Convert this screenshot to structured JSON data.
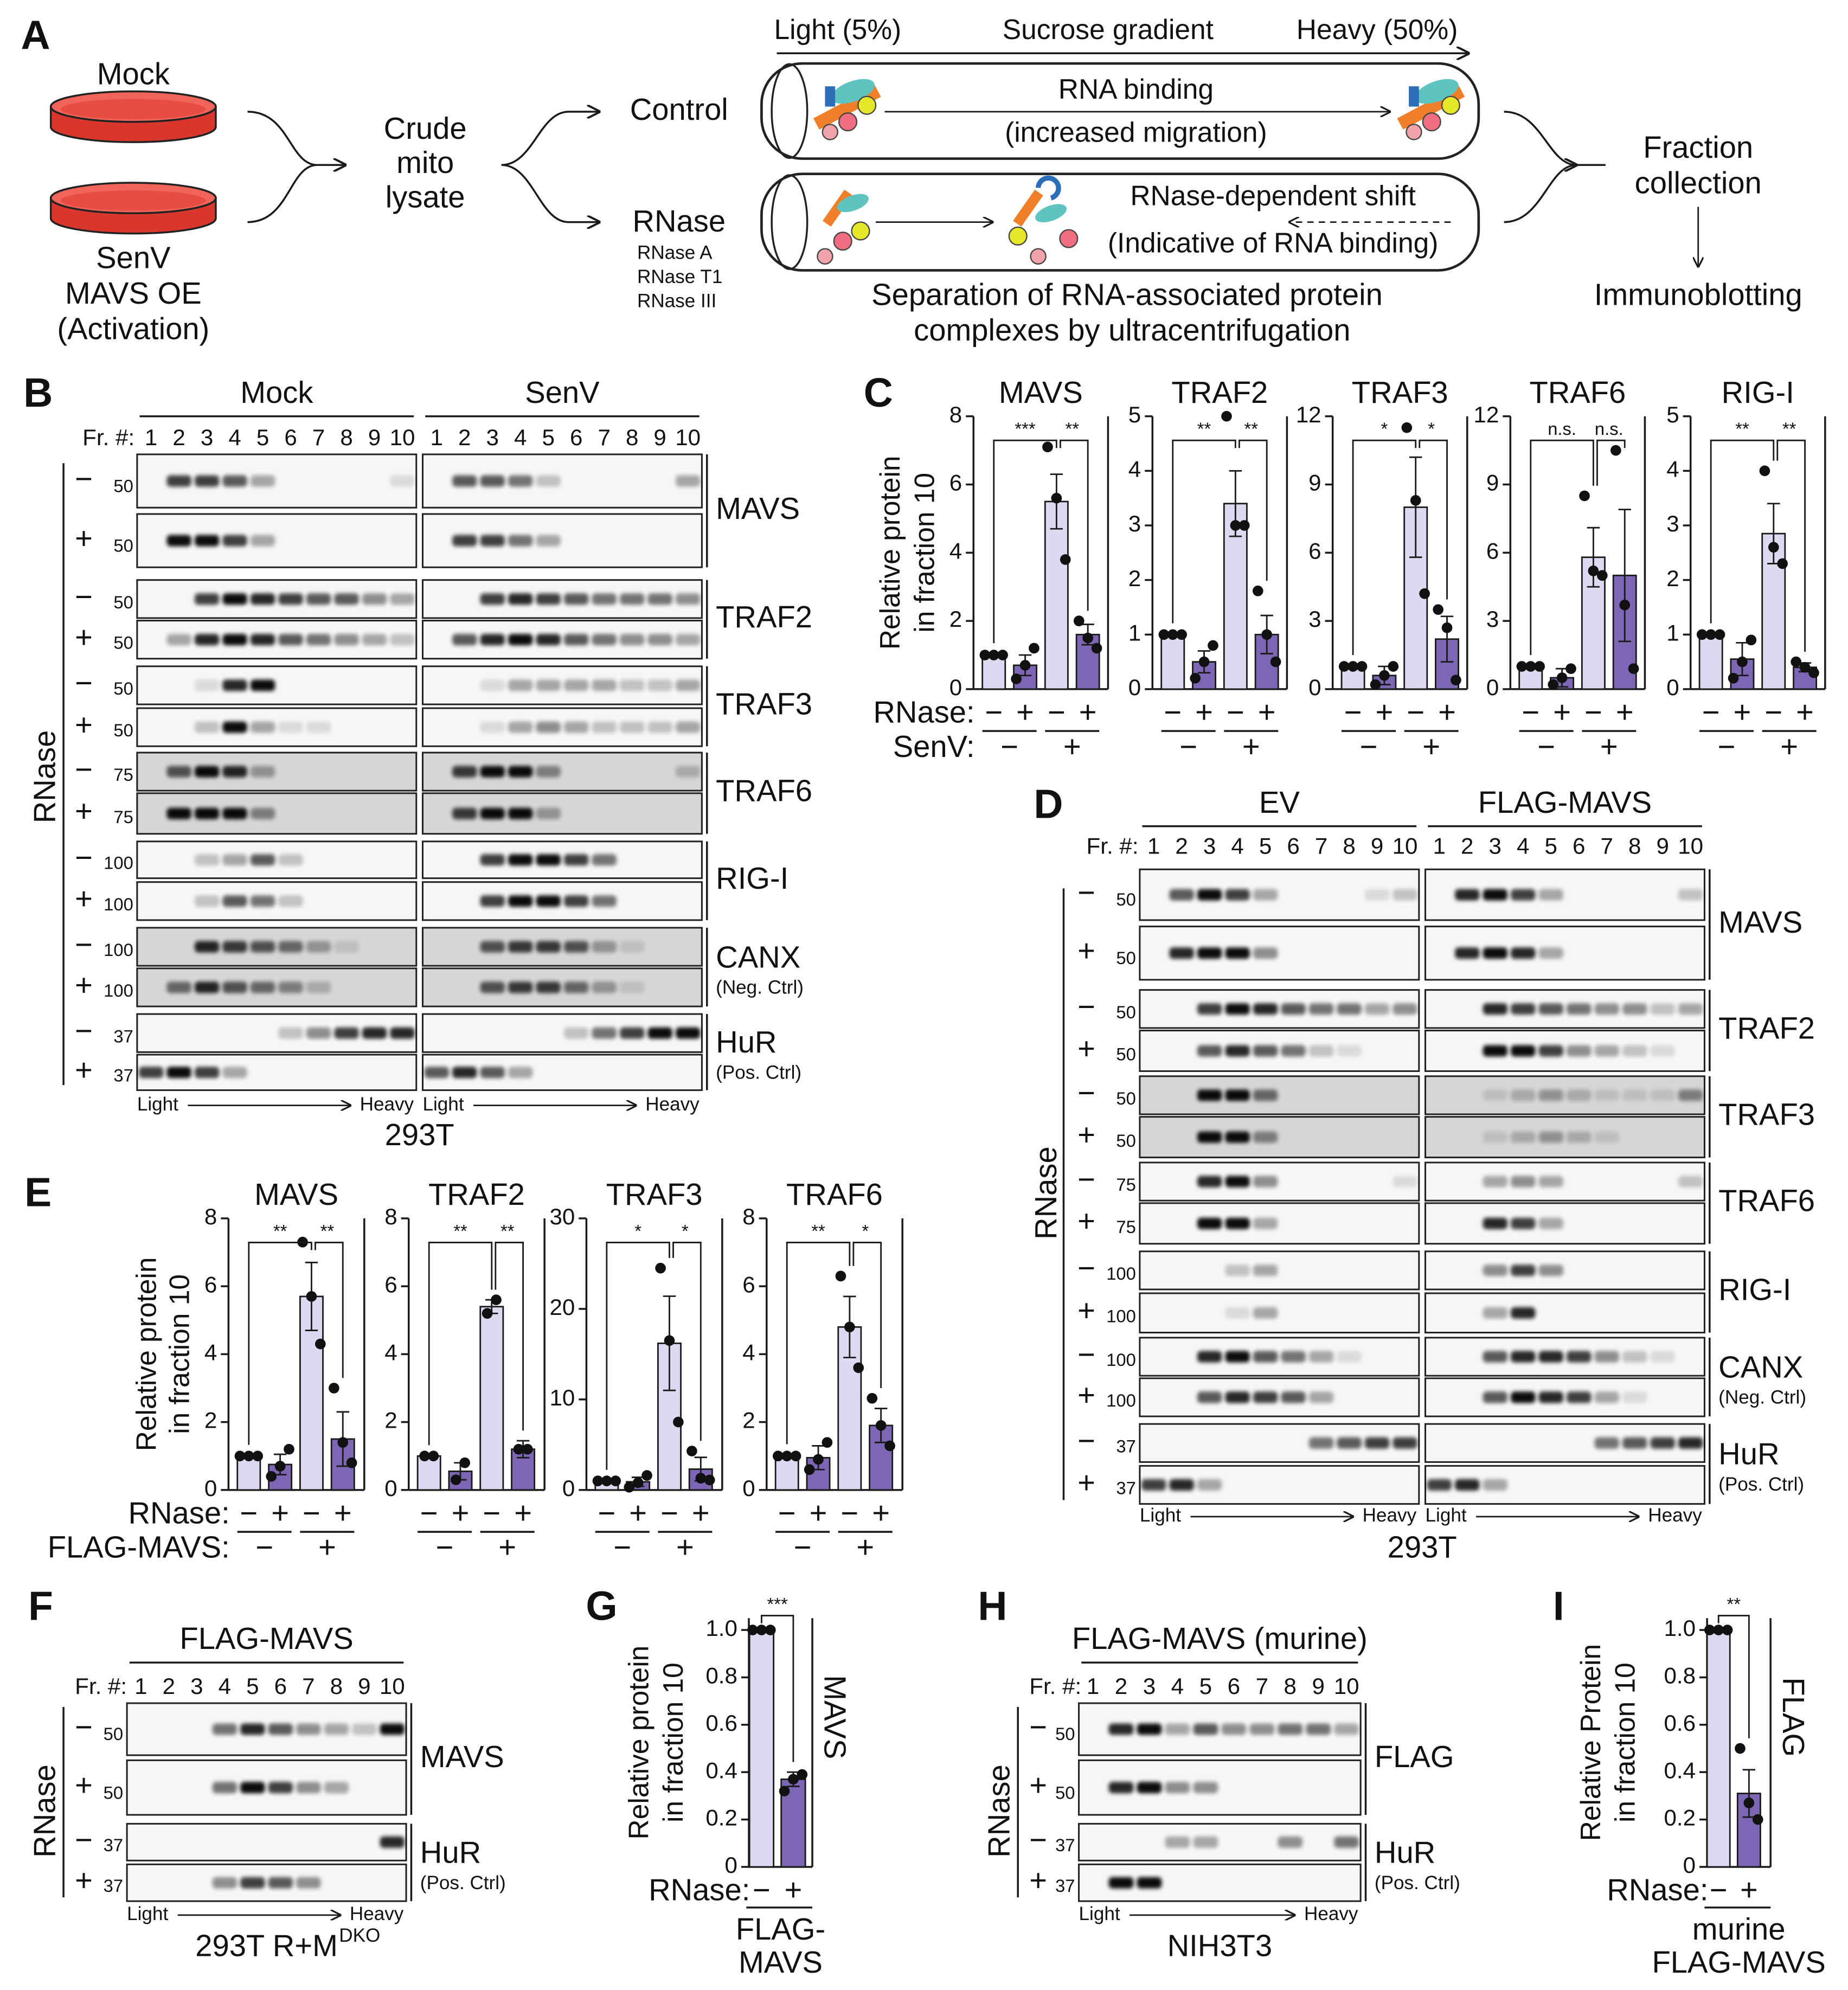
{
  "letters": [
    "A",
    "B",
    "C",
    "D",
    "E",
    "F",
    "G",
    "H",
    "I"
  ],
  "panel_a": {
    "mock": "Mock",
    "senv": [
      "SenV",
      "MAVS OE",
      "(Activation)"
    ],
    "lysate": [
      "Crude",
      "mito",
      "lysate"
    ],
    "control": "Control",
    "rnase": "RNase",
    "rnases": [
      "RNase A",
      "RNase T1",
      "RNase III"
    ],
    "light": "Light (5%)",
    "gradient": "Sucrose gradient",
    "heavy": "Heavy (50%)",
    "binding": [
      "RNA binding",
      "(increased migration)"
    ],
    "shift": [
      "RNase-dependent shift",
      "(Indicative of RNA binding)"
    ],
    "separation": [
      "Separation of RNA-associated protein",
      "complexes by ultracentrifugation"
    ],
    "collection": [
      "Fraction",
      "collection"
    ],
    "immunoblotting": "Immunoblotting"
  },
  "blots": {
    "B": {
      "groups": [
        "Mock",
        "SenV"
      ],
      "fraction_label": "Fr. #:",
      "fractions": [
        1,
        2,
        3,
        4,
        5,
        6,
        7,
        8,
        9,
        10
      ],
      "treatment": "RNase",
      "signs": [
        "−",
        "+"
      ],
      "rows": [
        {
          "protein": "MAVS",
          "markers": [
            50,
            50
          ]
        },
        {
          "protein": "TRAF2",
          "markers": [
            50,
            50
          ]
        },
        {
          "protein": "TRAF3",
          "markers": [
            50,
            50
          ]
        },
        {
          "protein": "TRAF6",
          "markers": [
            75,
            75
          ]
        },
        {
          "protein": "RIG-I",
          "markers": [
            100,
            100
          ]
        },
        {
          "protein": "CANX",
          "note": "(Neg. Ctrl)",
          "markers": [
            100,
            100
          ]
        },
        {
          "protein": "HuR",
          "note": "(Pos. Ctrl)",
          "markers": [
            37,
            37
          ]
        }
      ],
      "light": "Light",
      "heavy": "Heavy",
      "cell_line": "293T"
    },
    "D": {
      "groups": [
        "EV",
        "FLAG-MAVS"
      ],
      "fraction_label": "Fr. #:",
      "fractions": [
        1,
        2,
        3,
        4,
        5,
        6,
        7,
        8,
        9,
        10
      ],
      "treatment": "RNase",
      "signs": [
        "−",
        "+"
      ],
      "rows": [
        {
          "protein": "MAVS",
          "markers": [
            50,
            50
          ]
        },
        {
          "protein": "TRAF2",
          "markers": [
            50,
            50
          ]
        },
        {
          "protein": "TRAF3",
          "markers": [
            50,
            50
          ]
        },
        {
          "protein": "TRAF6",
          "markers": [
            75,
            75
          ]
        },
        {
          "protein": "RIG-I",
          "markers": [
            100,
            100
          ]
        },
        {
          "protein": "CANX",
          "note": "(Neg. Ctrl)",
          "markers": [
            100,
            100
          ]
        },
        {
          "protein": "HuR",
          "note": "(Pos. Ctrl)",
          "markers": [
            37,
            37
          ]
        }
      ],
      "light": "Light",
      "heavy": "Heavy",
      "cell_line": "293T"
    },
    "F": {
      "groups": [
        "FLAG-MAVS"
      ],
      "fraction_label": "Fr. #:",
      "fractions": [
        1,
        2,
        3,
        4,
        5,
        6,
        7,
        8,
        9,
        10
      ],
      "treatment": "RNase",
      "signs": [
        "−",
        "+"
      ],
      "rows": [
        {
          "protein": "MAVS",
          "markers": [
            50,
            50
          ]
        },
        {
          "protein": "HuR",
          "note": "(Pos. Ctrl)",
          "markers": [
            37,
            37
          ]
        }
      ],
      "light": "Light",
      "heavy": "Heavy",
      "cell_line": "293T R+M",
      "superscript": "DKO"
    },
    "H": {
      "groups": [
        "FLAG-MAVS (murine)"
      ],
      "fraction_label": "Fr. #:",
      "fractions": [
        1,
        2,
        3,
        4,
        5,
        6,
        7,
        8,
        9,
        10
      ],
      "treatment": "RNase",
      "signs": [
        "−",
        "+"
      ],
      "rows": [
        {
          "protein": "FLAG",
          "markers": [
            50,
            50
          ]
        },
        {
          "protein": "HuR",
          "note": "(Pos. Ctrl)",
          "markers": [
            37,
            37
          ]
        }
      ],
      "light": "Light",
      "heavy": "Heavy",
      "cell_line": "NIH3T3"
    }
  },
  "chart_data": [
    {
      "type": "bar",
      "title": "MAVS",
      "y_label": [
        "Relative protein",
        "in fraction 10"
      ],
      "x_label": "RNase:",
      "group_label": "SenV:",
      "groups": [
        "−",
        "+"
      ],
      "categories": [
        "−",
        "+",
        "−",
        "+"
      ],
      "values": [
        1,
        0.7,
        5.5,
        1.6
      ],
      "errors": [
        0.05,
        0.3,
        0.8,
        0.3
      ],
      "points": [
        [
          1,
          1,
          1
        ],
        [
          0.3,
          0.7,
          1.2
        ],
        [
          7.1,
          5.6,
          3.8
        ],
        [
          2.0,
          1.5,
          1.2
        ]
      ],
      "significance": [
        "***",
        "**"
      ],
      "ylim": [
        0,
        8
      ],
      "yticks": [
        0,
        2,
        4,
        6,
        8
      ],
      "colors": [
        "#dcdaf0",
        "#7d67b4",
        "#dcdaf0",
        "#7d67b4"
      ]
    },
    {
      "type": "bar",
      "title": "TRAF2",
      "groups": [
        "−",
        "+"
      ],
      "categories": [
        "−",
        "+",
        "−",
        "+"
      ],
      "values": [
        1,
        0.5,
        3.4,
        1.0
      ],
      "errors": [
        0.02,
        0.2,
        0.6,
        0.35
      ],
      "points": [
        [
          1,
          1,
          1
        ],
        [
          0.2,
          0.5,
          0.8
        ],
        [
          5.0,
          3.0,
          3.0
        ],
        [
          1.8,
          1.0,
          0.5
        ]
      ],
      "significance": [
        "**",
        "**"
      ],
      "ylim": [
        0,
        5
      ],
      "yticks": [
        0,
        1,
        2,
        3,
        4,
        5
      ],
      "colors": [
        "#dcdaf0",
        "#7d67b4",
        "#dcdaf0",
        "#7d67b4"
      ]
    },
    {
      "type": "bar",
      "title": "TRAF3",
      "groups": [
        "−",
        "+"
      ],
      "categories": [
        "−",
        "+",
        "−",
        "+"
      ],
      "values": [
        1,
        0.6,
        8.0,
        2.2
      ],
      "errors": [
        0.05,
        0.4,
        2.2,
        1.0
      ],
      "points": [
        [
          1,
          1,
          1
        ],
        [
          0.2,
          0.6,
          1.0
        ],
        [
          11.5,
          8.3,
          4.2
        ],
        [
          3.5,
          2.7,
          0.4
        ]
      ],
      "significance": [
        "*",
        "*"
      ],
      "ylim": [
        0,
        12
      ],
      "yticks": [
        0,
        3,
        6,
        9,
        12
      ],
      "colors": [
        "#dcdaf0",
        "#7d67b4",
        "#dcdaf0",
        "#7d67b4"
      ]
    },
    {
      "type": "bar",
      "title": "TRAF6",
      "groups": [
        "−",
        "+"
      ],
      "categories": [
        "−",
        "+",
        "−",
        "+"
      ],
      "values": [
        1,
        0.5,
        5.8,
        5.0
      ],
      "errors": [
        0.05,
        0.4,
        1.3,
        2.9
      ],
      "points": [
        [
          1,
          1,
          1
        ],
        [
          0.2,
          0.5,
          0.9
        ],
        [
          8.5,
          5.2,
          5.0
        ],
        [
          10.5,
          3.7,
          0.9
        ]
      ],
      "significance": [
        "n.s.",
        "n.s."
      ],
      "ylim": [
        0,
        12
      ],
      "yticks": [
        0,
        3,
        6,
        9,
        12
      ],
      "colors": [
        "#dcdaf0",
        "#7d67b4",
        "#dcdaf0",
        "#7d67b4"
      ]
    },
    {
      "type": "bar",
      "title": "RIG-I",
      "groups": [
        "−",
        "+"
      ],
      "categories": [
        "−",
        "+",
        "−",
        "+"
      ],
      "values": [
        1,
        0.55,
        2.85,
        0.4
      ],
      "errors": [
        0.02,
        0.3,
        0.55,
        0.08
      ],
      "points": [
        [
          1,
          1,
          1
        ],
        [
          0.2,
          0.5,
          0.9
        ],
        [
          4.0,
          2.6,
          2.3
        ],
        [
          0.5,
          0.4,
          0.3
        ]
      ],
      "significance": [
        "**",
        "**"
      ],
      "ylim": [
        0,
        5
      ],
      "yticks": [
        0,
        1,
        2,
        3,
        4,
        5
      ],
      "colors": [
        "#dcdaf0",
        "#7d67b4",
        "#dcdaf0",
        "#7d67b4"
      ]
    },
    {
      "type": "bar",
      "title": "MAVS",
      "y_label": [
        "Relative protein",
        "in fraction 10"
      ],
      "x_label": "RNase:",
      "group_label": "FLAG-MAVS:",
      "groups": [
        "−",
        "+"
      ],
      "categories": [
        "−",
        "+",
        "−",
        "+"
      ],
      "values": [
        1,
        0.75,
        5.7,
        1.5
      ],
      "errors": [
        0.03,
        0.3,
        1.0,
        0.8
      ],
      "points": [
        [
          1,
          1,
          1
        ],
        [
          0.4,
          0.7,
          1.2
        ],
        [
          7.3,
          5.7,
          4.3
        ],
        [
          3.0,
          1.4,
          0.8
        ]
      ],
      "significance": [
        "**",
        "**"
      ],
      "ylim": [
        0,
        8
      ],
      "yticks": [
        0,
        2,
        4,
        6,
        8
      ],
      "colors": [
        "#dcdaf0",
        "#7d67b4",
        "#dcdaf0",
        "#7d67b4"
      ]
    },
    {
      "type": "bar",
      "title": "TRAF2",
      "groups": [
        "−",
        "+"
      ],
      "categories": [
        "−",
        "+",
        "−",
        "+"
      ],
      "values": [
        1,
        0.55,
        5.4,
        1.2
      ],
      "errors": [
        0.02,
        0.25,
        0.2,
        0.25
      ],
      "points": [
        [
          1,
          1
        ],
        [
          0.3,
          0.8
        ],
        [
          5.2,
          5.6
        ],
        [
          1.2,
          1.2
        ]
      ],
      "significance": [
        "**",
        "**"
      ],
      "ylim": [
        0,
        8
      ],
      "yticks": [
        0,
        2,
        4,
        6,
        8
      ],
      "colors": [
        "#dcdaf0",
        "#7d67b4",
        "#dcdaf0",
        "#7d67b4"
      ]
    },
    {
      "type": "bar",
      "title": "TRAF3",
      "groups": [
        "−",
        "+"
      ],
      "categories": [
        "−",
        "+",
        "−",
        "+"
      ],
      "values": [
        1,
        0.9,
        16.2,
        2.3
      ],
      "errors": [
        0.1,
        0.5,
        5.2,
        1.3
      ],
      "points": [
        [
          1,
          1,
          1
        ],
        [
          0.3,
          0.8,
          1.6
        ],
        [
          24.5,
          16.5,
          7.5
        ],
        [
          4.3,
          1.3,
          1.1
        ]
      ],
      "significance": [
        "*",
        "*"
      ],
      "ylim": [
        0,
        30
      ],
      "yticks": [
        0,
        10,
        20,
        30
      ],
      "colors": [
        "#dcdaf0",
        "#7d67b4",
        "#dcdaf0",
        "#7d67b4"
      ]
    },
    {
      "type": "bar",
      "title": "TRAF6",
      "groups": [
        "−",
        "+"
      ],
      "categories": [
        "−",
        "+",
        "−",
        "+"
      ],
      "values": [
        1,
        0.95,
        4.8,
        1.9
      ],
      "errors": [
        0.05,
        0.35,
        0.9,
        0.5
      ],
      "points": [
        [
          1,
          1,
          1
        ],
        [
          0.6,
          0.9,
          1.4
        ],
        [
          6.3,
          4.8,
          3.6
        ],
        [
          2.7,
          1.9,
          1.3
        ]
      ],
      "significance": [
        "**",
        "*"
      ],
      "ylim": [
        0,
        8
      ],
      "yticks": [
        0,
        2,
        4,
        6,
        8
      ],
      "colors": [
        "#dcdaf0",
        "#7d67b4",
        "#dcdaf0",
        "#7d67b4"
      ]
    },
    {
      "type": "bar",
      "y_label": [
        "Relative protein",
        "in fraction 10"
      ],
      "x_label": "RNase:",
      "side_label": "MAVS",
      "group_name": [
        "FLAG-",
        "MAVS"
      ],
      "categories": [
        "−",
        "+"
      ],
      "values": [
        1,
        0.37
      ],
      "errors": [
        0.005,
        0.03
      ],
      "points": [
        [
          1,
          1,
          1
        ],
        [
          0.32,
          0.37,
          0.39
        ]
      ],
      "significance": [
        "***"
      ],
      "ylim": [
        0,
        1.05
      ],
      "yticks": [
        0,
        0.2,
        0.4,
        0.6,
        0.8,
        {
          "value": 1,
          "label": "1.0"
        }
      ],
      "colors": [
        "#dcdaf0",
        "#7d67b4"
      ]
    },
    {
      "type": "bar",
      "y_label": [
        "Relative Protein",
        "in fraction 10"
      ],
      "x_label": "RNase:",
      "side_label": "FLAG",
      "group_name": [
        "murine",
        "FLAG-MAVS"
      ],
      "categories": [
        "−",
        "+"
      ],
      "values": [
        1,
        0.31
      ],
      "errors": [
        0.005,
        0.1
      ],
      "points": [
        [
          1,
          1,
          1
        ],
        [
          0.5,
          0.27,
          0.2
        ]
      ],
      "significance": [
        "**"
      ],
      "ylim": [
        0,
        1.05
      ],
      "yticks": [
        0,
        0.2,
        0.4,
        0.6,
        0.8,
        {
          "value": 1,
          "label": "1.0"
        }
      ],
      "colors": [
        "#dcdaf0",
        "#7d67b4"
      ]
    }
  ]
}
